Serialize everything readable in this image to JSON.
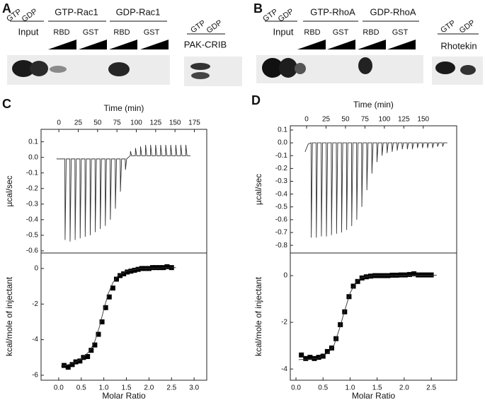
{
  "blot_a": {
    "panel_label": "A",
    "input_lanes": [
      "GTP",
      "GDP"
    ],
    "input_label": "Input",
    "groups": [
      {
        "label": "GTP-Rac1",
        "lanes": [
          "RBD",
          "GST"
        ]
      },
      {
        "label": "GDP-Rac1",
        "lanes": [
          "RBD",
          "GST"
        ]
      }
    ],
    "control_lanes": [
      "GTP",
      "GDP"
    ],
    "control_label": "PAK-CRIB"
  },
  "blot_b": {
    "panel_label": "B",
    "input_lanes": [
      "GTP",
      "GDP"
    ],
    "input_label": "Input",
    "groups": [
      {
        "label": "GTP-RhoA",
        "lanes": [
          "RBD",
          "GST"
        ]
      },
      {
        "label": "GDP-RhoA",
        "lanes": [
          "RBD",
          "GST"
        ]
      }
    ],
    "control_lanes": [
      "GTP",
      "GDP"
    ],
    "control_label": "Rhotekin"
  },
  "chart_data": [
    {
      "type": "line",
      "panel_label": "C",
      "x_label": "Time (min)",
      "y_label": "µcal/sec",
      "x_axis": "top",
      "xlim": [
        -23,
        191
      ],
      "ylim": [
        -0.614,
        0.18
      ],
      "xticks": [
        0,
        25,
        50,
        75,
        100,
        125,
        150,
        175
      ],
      "yticks": [
        0.1,
        {
          "value": 0,
          "label": "0.0"
        },
        -0.1,
        -0.2,
        -0.3,
        -0.4,
        -0.5,
        -0.6
      ],
      "series": [
        {
          "color": "#333333",
          "style": "line",
          "x": [
            -3,
            7.7,
            8,
            9.5,
            14.2,
            14.5,
            16,
            20.7,
            21,
            22.5,
            27.2,
            27.5,
            29,
            33.7,
            34,
            35.5,
            40.2,
            40.5,
            42,
            46.7,
            47,
            48.5,
            53.2,
            53.5,
            55,
            59.7,
            60,
            61.5,
            66.2,
            66.5,
            68,
            72.7,
            73,
            74.5,
            79.2,
            79.5,
            81,
            85.7,
            86,
            87.5,
            92.2,
            92.5,
            94,
            98.7,
            99,
            100.5,
            105.2,
            105.5,
            107,
            111.7,
            112,
            113.5,
            118.2,
            118.5,
            120,
            124.7,
            125,
            126.5,
            131.2,
            131.5,
            133,
            137.7,
            138,
            139.5,
            144.2,
            144.5,
            146,
            150.7,
            151,
            152.5,
            157.2,
            157.5,
            159,
            163.7,
            164,
            165.5,
            170
          ],
          "values": [
            -0.01,
            -0.01,
            -0.53,
            -0.01,
            -0.01,
            -0.54,
            -0.01,
            -0.01,
            -0.53,
            -0.01,
            -0.01,
            -0.52,
            -0.01,
            -0.01,
            -0.51,
            -0.01,
            -0.01,
            -0.5,
            -0.01,
            -0.01,
            -0.48,
            -0.01,
            -0.01,
            -0.46,
            -0.01,
            -0.01,
            -0.44,
            -0.01,
            -0.01,
            -0.4,
            -0.01,
            -0.01,
            -0.33,
            -0.01,
            -0.01,
            -0.22,
            -0.01,
            -0.01,
            -0.08,
            -0.01,
            0.01,
            0.04,
            0.01,
            0.01,
            0.06,
            0.01,
            0.01,
            0.07,
            0.01,
            0.01,
            0.08,
            0.01,
            0.01,
            0.08,
            0.01,
            0.01,
            0.08,
            0.01,
            0.01,
            0.08,
            0.01,
            0.01,
            0.08,
            0.01,
            0.01,
            0.08,
            0.01,
            0.01,
            0.08,
            0.01,
            0.01,
            0.08,
            0.01,
            0.01,
            0.08,
            0.01,
            0.01
          ]
        }
      ]
    },
    {
      "type": "scatter",
      "y_label": "kcal/mole of injectant",
      "x_label": "Molar Ratio",
      "x_axis": "bottom",
      "xlim": [
        -0.39,
        3.28
      ],
      "ylim": [
        -6.28,
        0.87
      ],
      "xticks": [
        {
          "value": 0,
          "label": "0.0"
        },
        0.5,
        {
          "value": 1,
          "label": "1.0"
        },
        1.5,
        {
          "value": 2,
          "label": "2.0"
        },
        2.5,
        {
          "value": 3,
          "label": "3.0"
        }
      ],
      "yticks": [
        0,
        -2,
        -4,
        -6
      ],
      "series": [
        {
          "color": "#000000",
          "style": "markers",
          "x": [
            0.12,
            0.21,
            0.3,
            0.38,
            0.47,
            0.55,
            0.64,
            0.72,
            0.8,
            0.88,
            0.96,
            1.04,
            1.12,
            1.2,
            1.28,
            1.36,
            1.44,
            1.52,
            1.6,
            1.68,
            1.76,
            1.84,
            1.92,
            2.0,
            2.08,
            2.16,
            2.24,
            2.32,
            2.4,
            2.5
          ],
          "values": [
            -5.45,
            -5.55,
            -5.4,
            -5.25,
            -5.2,
            -5.0,
            -4.95,
            -4.6,
            -4.3,
            -3.7,
            -3.0,
            -2.2,
            -1.6,
            -1.1,
            -0.6,
            -0.4,
            -0.3,
            -0.2,
            -0.15,
            -0.1,
            -0.05,
            0,
            0,
            0,
            0.05,
            0.05,
            0.05,
            0.05,
            0.1,
            0.05
          ]
        },
        {
          "color": "#333333",
          "style": "line",
          "x": [
            0.05,
            0.3,
            0.5,
            0.7,
            0.8,
            0.9,
            1.0,
            1.1,
            1.2,
            1.3,
            1.5,
            1.8,
            2.6
          ],
          "values": [
            -5.5,
            -5.35,
            -5.1,
            -4.6,
            -4.1,
            -3.3,
            -2.3,
            -1.4,
            -0.8,
            -0.45,
            -0.15,
            0,
            0.05
          ]
        }
      ]
    },
    {
      "type": "line",
      "panel_label": "D",
      "x_label": "Time (min)",
      "y_label": "µcal/sec",
      "x_axis": "top",
      "xlim": [
        -21,
        193
      ],
      "ylim": [
        -0.86,
        0.133
      ],
      "xticks": [
        0,
        25,
        50,
        75,
        100,
        125,
        150
      ],
      "yticks": [
        0.1,
        {
          "value": 0,
          "label": "0.0"
        },
        -0.1,
        -0.2,
        -0.3,
        -0.4,
        -0.5,
        -0.6,
        -0.7,
        -0.8
      ],
      "series": [
        {
          "color": "#333333",
          "style": "line",
          "x": [
            -2,
            2,
            5.7,
            6,
            7.5,
            12.2,
            12.5,
            14,
            18.7,
            19,
            20.5,
            25.2,
            25.5,
            27,
            31.7,
            32,
            33.5,
            38.2,
            38.5,
            40,
            44.7,
            45,
            46.5,
            51.2,
            51.5,
            53,
            57.7,
            58,
            59.5,
            64.2,
            64.5,
            66,
            70.7,
            71,
            72.5,
            77.2,
            77.5,
            79,
            83.7,
            84,
            85.5,
            90.2,
            90.5,
            92,
            96.7,
            97,
            98.5,
            103.2,
            103.5,
            105,
            109.7,
            110,
            111.5,
            116.2,
            116.5,
            118,
            122.7,
            123,
            124.5,
            129.2,
            129.5,
            131,
            135.7,
            136,
            137.5,
            142.2,
            142.5,
            144,
            148.7,
            149,
            150.5,
            155.2,
            155.5,
            157,
            161.7,
            162,
            163.5,
            168.2,
            168.5,
            170,
            174.7,
            175,
            176.5,
            181
          ],
          "values": [
            -0.07,
            -0.01,
            0,
            -0.74,
            0,
            0,
            -0.74,
            0,
            0,
            -0.73,
            0,
            0,
            -0.73,
            0,
            0,
            -0.72,
            0,
            0,
            -0.71,
            0,
            0,
            -0.7,
            0,
            0,
            -0.68,
            0,
            0,
            -0.65,
            0,
            0,
            -0.6,
            0,
            0,
            -0.5,
            0,
            0,
            -0.37,
            0,
            0,
            -0.24,
            0,
            0,
            -0.15,
            0,
            0,
            -0.1,
            0,
            0,
            -0.08,
            0,
            0,
            -0.07,
            0,
            0,
            -0.06,
            0,
            0,
            -0.05,
            0,
            0,
            -0.05,
            0,
            0,
            -0.05,
            0,
            0,
            -0.04,
            0,
            0,
            -0.04,
            0,
            0,
            -0.04,
            0,
            0,
            -0.04,
            0,
            0,
            -0.03,
            0,
            0,
            -0.03,
            0,
            0
          ]
        }
      ]
    },
    {
      "type": "scatter",
      "y_label": "kcal/mole of injectant",
      "x_label": "Molar Ratio",
      "x_axis": "bottom",
      "xlim": [
        -0.105,
        2.97
      ],
      "ylim": [
        -4.48,
        0.97
      ],
      "xticks": [
        {
          "value": 0,
          "label": "0.0"
        },
        0.5,
        {
          "value": 1,
          "label": "1.0"
        },
        1.5,
        {
          "value": 2,
          "label": "2.0"
        },
        2.5
      ],
      "yticks": [
        0,
        -2,
        -4
      ],
      "series": [
        {
          "color": "#000000",
          "style": "markers",
          "x": [
            0.1,
            0.18,
            0.26,
            0.34,
            0.42,
            0.5,
            0.58,
            0.66,
            0.74,
            0.82,
            0.9,
            0.98,
            1.06,
            1.14,
            1.22,
            1.3,
            1.38,
            1.46,
            1.54,
            1.62,
            1.7,
            1.78,
            1.86,
            1.94,
            2.02,
            2.1,
            2.18,
            2.26,
            2.34,
            2.42,
            2.5
          ],
          "values": [
            -3.4,
            -3.55,
            -3.5,
            -3.55,
            -3.5,
            -3.45,
            -3.25,
            -3.1,
            -2.7,
            -2.1,
            -1.55,
            -0.9,
            -0.45,
            -0.25,
            -0.1,
            -0.05,
            -0.02,
            0,
            0,
            0,
            0,
            0.02,
            0.02,
            0.03,
            0.03,
            0.05,
            0.08,
            0.03,
            0.03,
            0.03,
            0.03
          ]
        },
        {
          "color": "#333333",
          "style": "line",
          "x": [
            0.05,
            0.4,
            0.6,
            0.7,
            0.8,
            0.9,
            1.0,
            1.1,
            1.2,
            1.4,
            2.6
          ],
          "values": [
            -3.6,
            -3.55,
            -3.3,
            -3.0,
            -2.3,
            -1.5,
            -0.75,
            -0.3,
            -0.1,
            0,
            0.02
          ]
        }
      ]
    }
  ]
}
